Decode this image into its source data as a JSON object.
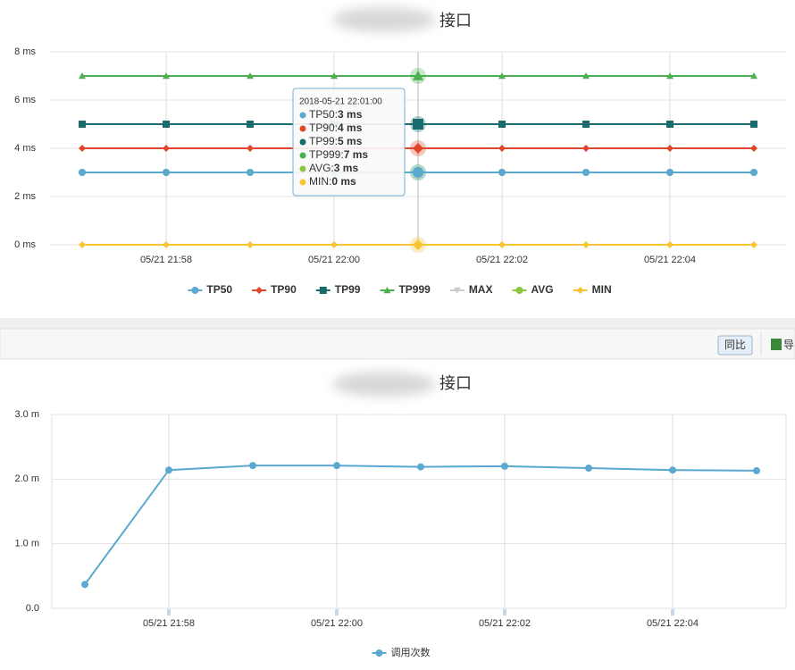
{
  "chart_data": [
    {
      "type": "line",
      "title": "接口",
      "categories": [
        null,
        "05/21 21:58",
        null,
        "05/21 22:00",
        null,
        "05/21 22:02",
        null,
        "05/21 22:04",
        null
      ],
      "ylim": [
        0,
        8
      ],
      "yticks": [
        {
          "value": 0,
          "label": "0 ms"
        },
        {
          "value": 2,
          "label": "2 ms"
        },
        {
          "value": 4,
          "label": "4 ms"
        },
        {
          "value": 6,
          "label": "6 ms"
        },
        {
          "value": 8,
          "label": "8 ms"
        }
      ],
      "grid": true,
      "series": [
        {
          "name": "TP50",
          "color": "#5ba8d0",
          "marker": "circle",
          "values": [
            3,
            3,
            3,
            3,
            3,
            3,
            3,
            3,
            3
          ]
        },
        {
          "name": "TP90",
          "color": "#e0462b",
          "marker": "diamond",
          "values": [
            4,
            4,
            4,
            4,
            4,
            4,
            4,
            4,
            4
          ]
        },
        {
          "name": "TP99",
          "color": "#1a6b6b",
          "marker": "square",
          "values": [
            5,
            5,
            5,
            5,
            5,
            5,
            5,
            5,
            5
          ]
        },
        {
          "name": "TP999",
          "color": "#4caf50",
          "marker": "triangle",
          "values": [
            7,
            7,
            7,
            7,
            7,
            7,
            7,
            7,
            7
          ]
        },
        {
          "name": "MAX",
          "color": "#cccccc",
          "marker": "triangle-down",
          "visible": false,
          "values": [
            null,
            null,
            null,
            null,
            null,
            null,
            null,
            null,
            null
          ]
        },
        {
          "name": "AVG",
          "color": "#8dc63f",
          "marker": "circle",
          "values": [
            3,
            3,
            3,
            3,
            3,
            3,
            3,
            3,
            3
          ]
        },
        {
          "name": "MIN",
          "color": "#f7c434",
          "marker": "diamond",
          "values": [
            0,
            0,
            0,
            0,
            0,
            0,
            0,
            0,
            0
          ]
        }
      ],
      "tooltip": {
        "title": "2018-05-21 22:01:00",
        "index": 4,
        "items": [
          {
            "series": 0,
            "name": "TP50: ",
            "label": "3 ms"
          },
          {
            "series": 1,
            "name": "TP90: ",
            "label": "4 ms"
          },
          {
            "series": 2,
            "name": "TP99: ",
            "label": "5 ms"
          },
          {
            "series": 3,
            "name": "TP999: ",
            "label": "7 ms"
          },
          {
            "series": 5,
            "name": "AVG: ",
            "label": "3 ms"
          },
          {
            "series": 6,
            "name": "MIN: ",
            "label": "0 ms"
          }
        ]
      }
    },
    {
      "type": "line",
      "title": "接口",
      "categories": [
        null,
        "05/21 21:58",
        null,
        "05/21 22:00",
        null,
        "05/21 22:02",
        null,
        "05/21 22:04",
        null
      ],
      "ylim": [
        0,
        3
      ],
      "yticks": [
        {
          "value": 0,
          "label": "0.0"
        },
        {
          "value": 1,
          "label": "1.0 m"
        },
        {
          "value": 2,
          "label": "2.0 m"
        },
        {
          "value": 3,
          "label": "3.0 m"
        }
      ],
      "grid": true,
      "series": [
        {
          "name": "调用次数",
          "color": "#5ba8d0",
          "marker": "circle",
          "values": [
            0.37,
            2.14,
            2.21,
            2.21,
            2.19,
            2.2,
            2.17,
            2.14,
            2.13
          ]
        }
      ]
    }
  ],
  "toolbar": {
    "button": "同比",
    "export": "导"
  }
}
